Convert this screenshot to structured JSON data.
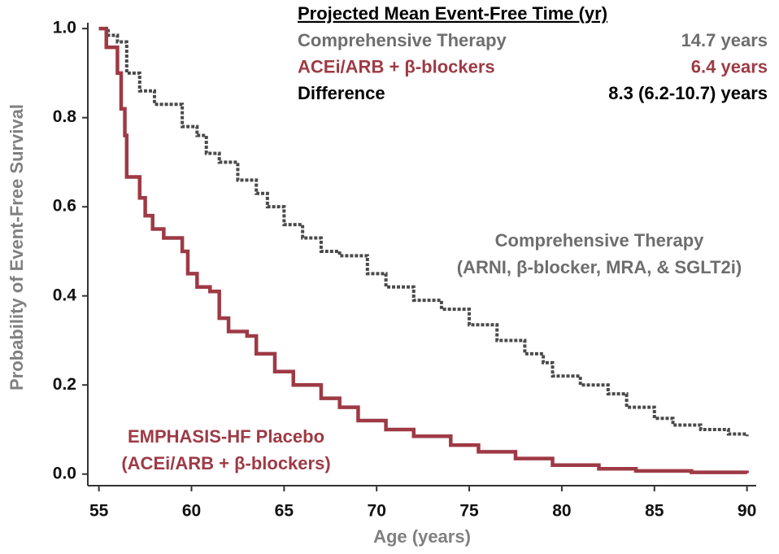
{
  "chart_data": {
    "type": "step",
    "xlabel": "Age (years)",
    "ylabel": "Probability of Event-Free Survival",
    "xlim": [
      54.4,
      90.5
    ],
    "ylim": [
      -0.026,
      1.013
    ],
    "xticks": [
      55,
      60,
      65,
      70,
      75,
      80,
      85,
      90
    ],
    "yticks": [
      {
        "value": 0,
        "label": "0.0"
      },
      0.2,
      0.4,
      0.6,
      0.8,
      {
        "value": 1,
        "label": "1.0"
      }
    ],
    "series": [
      {
        "name": "Comprehensive Therapy",
        "note": "(ARNI, β-blocker, MRA, & SGLT2i)",
        "color": "#4a4a4a",
        "text_color": "#6e6e6e",
        "dashed": true,
        "x": [
          55,
          55.5,
          56,
          56.5,
          57.2,
          58,
          59.5,
          60.3,
          60.8,
          61.5,
          62.5,
          63.5,
          64.1,
          65,
          66,
          67,
          68,
          69.5,
          70.5,
          72,
          73.5,
          75,
          76.5,
          78,
          79,
          79.5,
          81,
          82.5,
          83.5,
          85,
          86,
          87.5,
          89,
          90
        ],
        "values": [
          1.0,
          0.985,
          0.97,
          0.9,
          0.86,
          0.83,
          0.78,
          0.76,
          0.72,
          0.7,
          0.66,
          0.63,
          0.6,
          0.56,
          0.53,
          0.5,
          0.49,
          0.45,
          0.42,
          0.39,
          0.37,
          0.335,
          0.3,
          0.27,
          0.25,
          0.22,
          0.2,
          0.18,
          0.15,
          0.125,
          0.11,
          0.1,
          0.09,
          0.085
        ]
      },
      {
        "name": "EMPHASIS-HF Placebo",
        "note": "(ACEi/ARB + β-blockers)",
        "color": "#9e3a45",
        "text_color": "#9e3a45",
        "dashed": false,
        "x": [
          55,
          55.4,
          56,
          56.2,
          56.4,
          56.5,
          57,
          57.2,
          57.5,
          57.9,
          58.5,
          59.5,
          59.8,
          60.3,
          61,
          61.5,
          62,
          63,
          63.5,
          64.5,
          65.5,
          67,
          68,
          69,
          70.5,
          72,
          74,
          75.5,
          77.5,
          79.5,
          82,
          84,
          87,
          90
        ],
        "values": [
          1.0,
          0.958,
          0.9,
          0.82,
          0.76,
          0.667,
          0.667,
          0.62,
          0.58,
          0.55,
          0.53,
          0.5,
          0.45,
          0.42,
          0.41,
          0.35,
          0.32,
          0.31,
          0.27,
          0.23,
          0.2,
          0.17,
          0.15,
          0.12,
          0.1,
          0.085,
          0.065,
          0.05,
          0.035,
          0.02,
          0.012,
          0.007,
          0.004,
          0.002
        ]
      }
    ],
    "summary": {
      "title": "Projected Mean Event-Free Time (yr)",
      "rows": [
        {
          "label": "Comprehensive Therapy",
          "value": "14.7 years",
          "color": "#6e6e6e"
        },
        {
          "label": "ACEi/ARB + β-blockers",
          "value": "6.4 years",
          "color": "#9e3a45"
        },
        {
          "label": "Difference",
          "value": "8.3 (6.2-10.7) years",
          "color": "#000000"
        }
      ]
    }
  }
}
